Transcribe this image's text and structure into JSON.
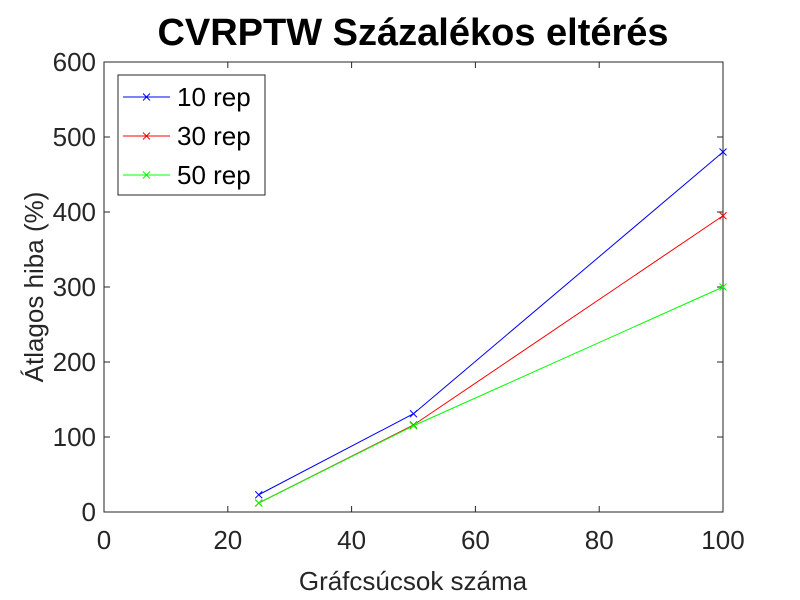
{
  "chart_data": {
    "type": "line",
    "title": "CVRPTW Százalékos eltérés",
    "xlabel": "Gráfcsúcsok száma",
    "ylabel": "Átlagos hiba (%)",
    "xlim": [
      0,
      100
    ],
    "ylim": [
      0,
      600
    ],
    "xticks": [
      0,
      20,
      40,
      60,
      80,
      100
    ],
    "yticks": [
      0,
      100,
      200,
      300,
      400,
      500,
      600
    ],
    "x": [
      25,
      50,
      100
    ],
    "series": [
      {
        "name": "10 rep",
        "color": "#0000ff",
        "marker": "x",
        "values": [
          23,
          131,
          480
        ]
      },
      {
        "name": "30 rep",
        "color": "#ff0000",
        "marker": "x",
        "values": [
          12,
          116,
          395
        ]
      },
      {
        "name": "50 rep",
        "color": "#00ff00",
        "marker": "x",
        "values": [
          12,
          115,
          300
        ]
      }
    ],
    "grid": false,
    "legend_position": "top-left"
  }
}
